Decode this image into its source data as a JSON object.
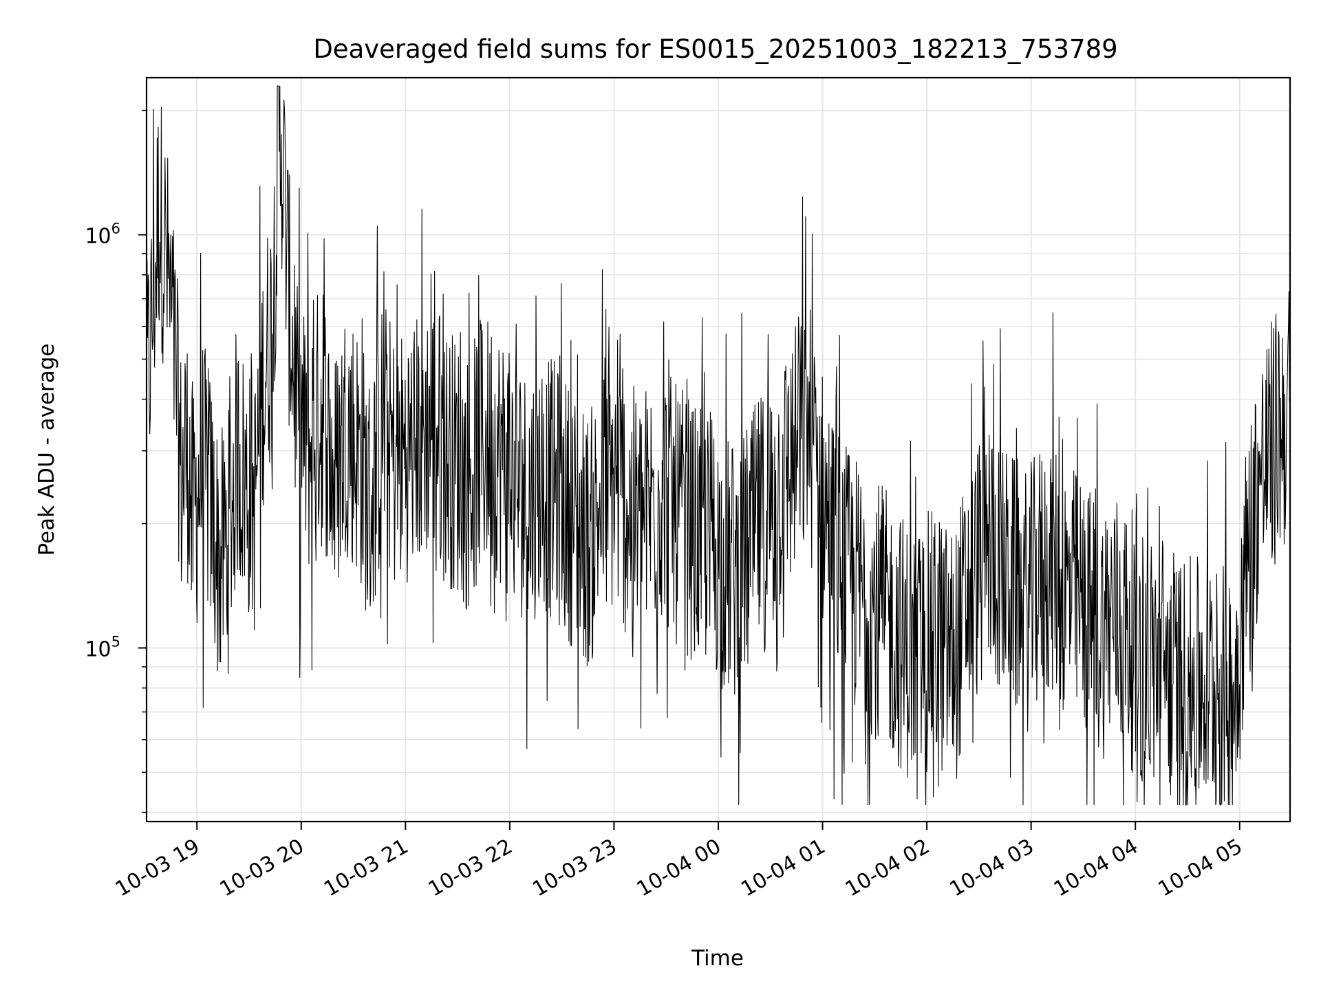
{
  "chart_data": {
    "type": "line",
    "title": "Deaveraged field sums for ES0015_20251003_182213_753789",
    "xlabel": "Time",
    "ylabel": "Peak ADU - average",
    "yscale": "log",
    "ylim": [
      38000,
      2400000
    ],
    "xlim": [
      "2025-10-03 18:31",
      "2025-10-04 05:29"
    ],
    "grid": true,
    "line_color": "#000000",
    "grid_color": "#e6e6e6",
    "x_ticks": [
      {
        "value": "2025-10-03 19:00",
        "label": "10-03 19"
      },
      {
        "value": "2025-10-03 20:00",
        "label": "10-03 20"
      },
      {
        "value": "2025-10-03 21:00",
        "label": "10-03 21"
      },
      {
        "value": "2025-10-03 22:00",
        "label": "10-03 22"
      },
      {
        "value": "2025-10-03 23:00",
        "label": "10-03 23"
      },
      {
        "value": "2025-10-04 00:00",
        "label": "10-04 00"
      },
      {
        "value": "2025-10-04 01:00",
        "label": "10-04 01"
      },
      {
        "value": "2025-10-04 02:00",
        "label": "10-04 02"
      },
      {
        "value": "2025-10-04 03:00",
        "label": "10-04 03"
      },
      {
        "value": "2025-10-04 04:00",
        "label": "10-04 04"
      },
      {
        "value": "2025-10-04 05:00",
        "label": "10-04 05"
      }
    ],
    "y_ticks": [
      {
        "value": 100000,
        "base": "10",
        "exp": "5"
      },
      {
        "value": 1000000,
        "base": "10",
        "exp": "6"
      }
    ],
    "series": [
      {
        "x": [
          "2025-10-03 18:31",
          "2025-10-03 18:35",
          "2025-10-03 18:38",
          "2025-10-03 18:41",
          "2025-10-03 18:45",
          "2025-10-03 18:48",
          "2025-10-03 18:51",
          "2025-10-03 18:55",
          "2025-10-03 18:58",
          "2025-10-03 19:03",
          "2025-10-03 19:08",
          "2025-10-03 19:13",
          "2025-10-03 19:18",
          "2025-10-03 19:23",
          "2025-10-03 19:28",
          "2025-10-03 19:33",
          "2025-10-03 19:38",
          "2025-10-03 19:43",
          "2025-10-03 19:48",
          "2025-10-03 19:53",
          "2025-10-03 19:58",
          "2025-10-03 20:05",
          "2025-10-03 20:12",
          "2025-10-03 20:19",
          "2025-10-03 20:26",
          "2025-10-03 20:33",
          "2025-10-03 20:40",
          "2025-10-03 20:47",
          "2025-10-03 20:54",
          "2025-10-03 21:01",
          "2025-10-03 21:08",
          "2025-10-03 21:15",
          "2025-10-03 21:22",
          "2025-10-03 21:29",
          "2025-10-03 21:36",
          "2025-10-03 21:43",
          "2025-10-03 21:50",
          "2025-10-03 21:57",
          "2025-10-03 22:04",
          "2025-10-03 22:11",
          "2025-10-03 22:18",
          "2025-10-03 22:25",
          "2025-10-03 22:32",
          "2025-10-03 22:39",
          "2025-10-03 22:46",
          "2025-10-03 22:53",
          "2025-10-03 23:00",
          "2025-10-03 23:07",
          "2025-10-03 23:14",
          "2025-10-03 23:21",
          "2025-10-03 23:28",
          "2025-10-03 23:35",
          "2025-10-03 23:42",
          "2025-10-03 23:49",
          "2025-10-03 23:56",
          "2025-10-04 00:03",
          "2025-10-04 00:10",
          "2025-10-04 00:17",
          "2025-10-04 00:24",
          "2025-10-04 00:31",
          "2025-10-04 00:38",
          "2025-10-04 00:45",
          "2025-10-04 00:52",
          "2025-10-04 00:59",
          "2025-10-04 01:06",
          "2025-10-04 01:13",
          "2025-10-04 01:20",
          "2025-10-04 01:27",
          "2025-10-04 01:34",
          "2025-10-04 01:41",
          "2025-10-04 01:48",
          "2025-10-04 01:55",
          "2025-10-04 02:02",
          "2025-10-04 02:09",
          "2025-10-04 02:16",
          "2025-10-04 02:23",
          "2025-10-04 02:30",
          "2025-10-04 02:37",
          "2025-10-04 02:44",
          "2025-10-04 02:51",
          "2025-10-04 02:58",
          "2025-10-04 03:05",
          "2025-10-04 03:12",
          "2025-10-04 03:19",
          "2025-10-04 03:26",
          "2025-10-04 03:33",
          "2025-10-04 03:40",
          "2025-10-04 03:47",
          "2025-10-04 03:54",
          "2025-10-04 04:01",
          "2025-10-04 04:08",
          "2025-10-04 04:15",
          "2025-10-04 04:22",
          "2025-10-04 04:29",
          "2025-10-04 04:36",
          "2025-10-04 04:43",
          "2025-10-04 04:50",
          "2025-10-04 04:57",
          "2025-10-04 05:04",
          "2025-10-04 05:11",
          "2025-10-04 05:18",
          "2025-10-04 05:25",
          "2025-10-04 05:29"
        ],
        "y": [
          400000,
          700000,
          1150000,
          980000,
          650000,
          450000,
          250000,
          300000,
          200000,
          280000,
          220000,
          160000,
          180000,
          300000,
          250000,
          220000,
          450000,
          600000,
          2000000,
          700000,
          350000,
          300000,
          400000,
          250000,
          350000,
          300000,
          220000,
          350000,
          280000,
          300000,
          320000,
          350000,
          300000,
          280000,
          250000,
          300000,
          320000,
          280000,
          250000,
          230000,
          260000,
          240000,
          220000,
          200000,
          180000,
          230000,
          250000,
          220000,
          200000,
          220000,
          240000,
          210000,
          200000,
          180000,
          190000,
          160000,
          150000,
          170000,
          200000,
          220000,
          260000,
          300000,
          350000,
          240000,
          180000,
          150000,
          140000,
          130000,
          120000,
          110000,
          100000,
          95000,
          105000,
          100000,
          95000,
          130000,
          160000,
          180000,
          150000,
          140000,
          130000,
          150000,
          160000,
          140000,
          130000,
          120000,
          110000,
          120000,
          110000,
          100000,
          90000,
          95000,
          85000,
          80000,
          80000,
          82000,
          78000,
          80000,
          160000,
          250000,
          300000,
          350000,
          380000
        ]
      }
    ]
  }
}
